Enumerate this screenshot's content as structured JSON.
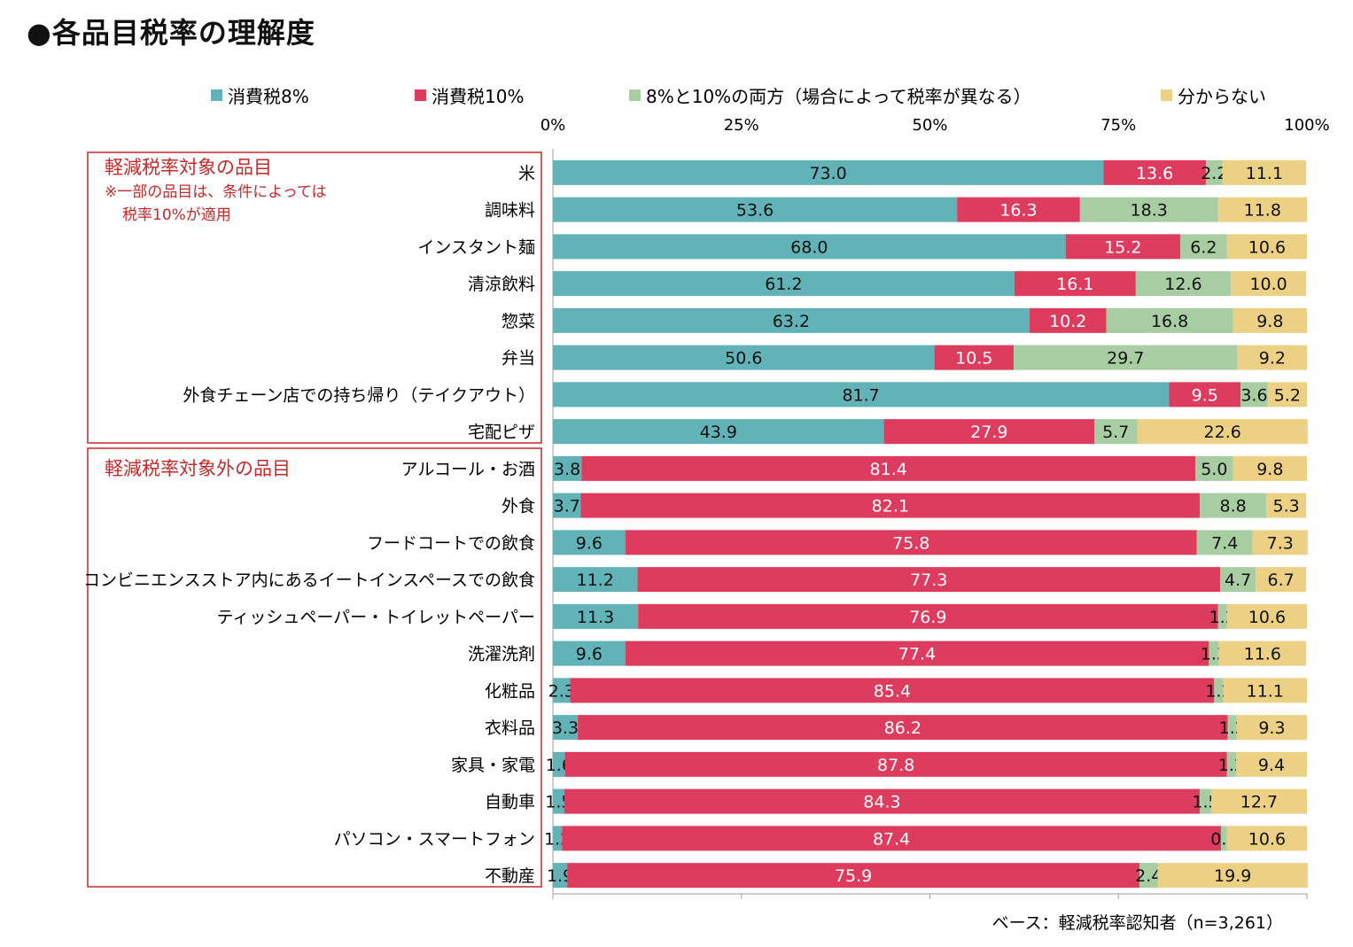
{
  "title": "●各品目税率の理解度",
  "chart_data": {
    "type": "bar",
    "orientation": "horizontal-stacked-100",
    "series": [
      {
        "name": "消費税8%",
        "color": "#62b3b8"
      },
      {
        "name": "消費税10%",
        "color": "#dd3c5e"
      },
      {
        "name": "8%と10%の両方（場合によって税率が異なる）",
        "color": "#a9cda3"
      },
      {
        "name": "分からない",
        "color": "#ecd185"
      }
    ],
    "xlim": [
      0,
      100
    ],
    "x_ticks": [
      "0%",
      "25%",
      "50%",
      "75%",
      "100%"
    ],
    "grid": false,
    "legend_position": "top",
    "categories": [
      "米",
      "調味料",
      "インスタント麺",
      "清涼飲料",
      "惣菜",
      "弁当",
      "外食チェーン店での持ち帰り（テイクアウト）",
      "宅配ピザ",
      "アルコール・お酒",
      "外食",
      "フードコートでの飲食",
      "コンビニエンスストア内にあるイートインスペースでの飲食",
      "ティッシュペーパー・トイレットペーパー",
      "洗濯洗剤",
      "化粧品",
      "衣料品",
      "家具・家電",
      "自動車",
      "パソコン・スマートフォン",
      "不動産"
    ],
    "values": [
      [
        73.0,
        13.6,
        2.2,
        11.1
      ],
      [
        53.6,
        16.3,
        18.3,
        11.8
      ],
      [
        68.0,
        15.2,
        6.2,
        10.6
      ],
      [
        61.2,
        16.1,
        12.6,
        10.0
      ],
      [
        63.2,
        10.2,
        16.8,
        9.8
      ],
      [
        50.6,
        10.5,
        29.7,
        9.2
      ],
      [
        81.7,
        9.5,
        3.6,
        5.2
      ],
      [
        43.9,
        27.9,
        5.7,
        22.6
      ],
      [
        3.8,
        81.4,
        5.0,
        9.8
      ],
      [
        3.7,
        82.1,
        8.8,
        5.3
      ],
      [
        9.6,
        75.8,
        7.4,
        7.3
      ],
      [
        11.2,
        77.3,
        4.7,
        6.7
      ],
      [
        11.3,
        76.9,
        1.2,
        10.6
      ],
      [
        9.6,
        77.4,
        1.3,
        11.6
      ],
      [
        2.3,
        85.4,
        1.2,
        11.1
      ],
      [
        3.3,
        86.2,
        1.2,
        9.3
      ],
      [
        1.6,
        87.8,
        1.2,
        9.4
      ],
      [
        1.5,
        84.3,
        1.5,
        12.7
      ],
      [
        1.2,
        87.4,
        0.8,
        10.6
      ],
      [
        1.9,
        75.9,
        2.4,
        19.9
      ]
    ],
    "groups": [
      {
        "title": "軽減税率対象の品目",
        "note": [
          "※一部の品目は、条件によっては",
          "税率10%が適用"
        ],
        "rows": [
          0,
          7
        ]
      },
      {
        "title": "軽減税率対象外の品目",
        "note": [],
        "rows": [
          8,
          19
        ]
      }
    ],
    "footnote": "ベース：軽減税率認知者（n=3,261）"
  }
}
